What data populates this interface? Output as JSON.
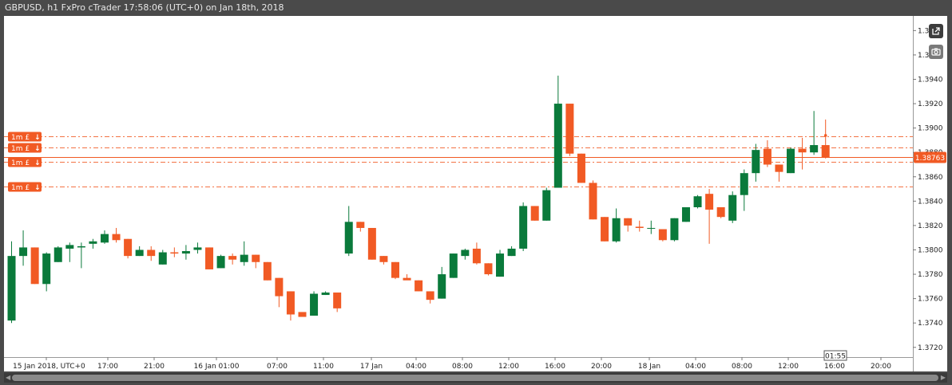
{
  "window": {
    "title": "GBPUSD, h1 FxPro cTrader 17:58:06 (UTC+0) on Jan 18th, 2018"
  },
  "toolbar": {
    "popout_icon": "external-link-icon",
    "screenshot_icon": "camera-icon"
  },
  "colors": {
    "bull": "#0a7a3b",
    "bear": "#f15a24",
    "order_line": "#f15a24",
    "price_line": "#f15a24"
  },
  "chart_data": {
    "type": "candlestick",
    "symbol": "GBPUSD",
    "timeframe": "h1",
    "ylim": [
      1.3712,
      1.3992
    ],
    "y_ticks": [
      "1.3720",
      "1.3740",
      "1.3760",
      "1.3780",
      "1.3800",
      "1.3820",
      "1.3840",
      "1.3860",
      "1.3880",
      "1.3900",
      "1.3920",
      "1.3940",
      "1.3960",
      "1.3980"
    ],
    "x_ticks": [
      "15 Jan 2018, UTC+0",
      "17:00",
      "21:00",
      "16 Jan 01:00",
      "07:00",
      "11:00",
      "17 Jan",
      "04:00",
      "08:00",
      "12:00",
      "16:00",
      "20:00",
      "18 Jan",
      "04:00",
      "08:00",
      "12:00",
      "16:00",
      "20:00"
    ],
    "current_price": "1.38763",
    "current_price_value": 1.38763,
    "countdown": "01:55",
    "orders": [
      {
        "label": "1m £",
        "arrow": "↓",
        "price": 1.3893
      },
      {
        "label": "1m £",
        "arrow": "↓",
        "price": 1.3884
      },
      {
        "label": "1m £",
        "arrow": "↓",
        "price": 1.3872
      },
      {
        "label": "1m £",
        "arrow": "↓",
        "price": 1.3852
      }
    ],
    "candles": [
      {
        "o": 1.3742,
        "h": 1.3807,
        "l": 1.374,
        "c": 1.3795
      },
      {
        "o": 1.3795,
        "h": 1.3816,
        "l": 1.3787,
        "c": 1.3802
      },
      {
        "o": 1.3802,
        "h": 1.3802,
        "l": 1.3772,
        "c": 1.3772
      },
      {
        "o": 1.3772,
        "h": 1.3798,
        "l": 1.3766,
        "c": 1.3797
      },
      {
        "o": 1.379,
        "h": 1.3803,
        "l": 1.379,
        "c": 1.3802
      },
      {
        "o": 1.3801,
        "h": 1.3806,
        "l": 1.379,
        "c": 1.3804
      },
      {
        "o": 1.3802,
        "h": 1.3806,
        "l": 1.3785,
        "c": 1.3803
      },
      {
        "o": 1.3805,
        "h": 1.3809,
        "l": 1.3801,
        "c": 1.3807
      },
      {
        "o": 1.3806,
        "h": 1.3816,
        "l": 1.3805,
        "c": 1.3813
      },
      {
        "o": 1.3813,
        "h": 1.3818,
        "l": 1.3806,
        "c": 1.3808
      },
      {
        "o": 1.3809,
        "h": 1.3809,
        "l": 1.3793,
        "c": 1.3795
      },
      {
        "o": 1.3795,
        "h": 1.3803,
        "l": 1.3795,
        "c": 1.38
      },
      {
        "o": 1.38,
        "h": 1.3803,
        "l": 1.3791,
        "c": 1.3795
      },
      {
        "o": 1.3788,
        "h": 1.38,
        "l": 1.3788,
        "c": 1.3798
      },
      {
        "o": 1.3798,
        "h": 1.3802,
        "l": 1.3794,
        "c": 1.3797
      },
      {
        "o": 1.3797,
        "h": 1.3804,
        "l": 1.3792,
        "c": 1.3799
      },
      {
        "o": 1.38,
        "h": 1.3806,
        "l": 1.3797,
        "c": 1.3802
      },
      {
        "o": 1.3802,
        "h": 1.3802,
        "l": 1.3784,
        "c": 1.3784
      },
      {
        "o": 1.3785,
        "h": 1.3796,
        "l": 1.3785,
        "c": 1.3795
      },
      {
        "o": 1.3795,
        "h": 1.3797,
        "l": 1.3788,
        "c": 1.3792
      },
      {
        "o": 1.379,
        "h": 1.3807,
        "l": 1.3787,
        "c": 1.3796
      },
      {
        "o": 1.3796,
        "h": 1.3796,
        "l": 1.3785,
        "c": 1.379
      },
      {
        "o": 1.379,
        "h": 1.379,
        "l": 1.3775,
        "c": 1.3775
      },
      {
        "o": 1.3777,
        "h": 1.3777,
        "l": 1.3753,
        "c": 1.3762
      },
      {
        "o": 1.3766,
        "h": 1.3766,
        "l": 1.3742,
        "c": 1.3747
      },
      {
        "o": 1.3749,
        "h": 1.3749,
        "l": 1.3745,
        "c": 1.3745
      },
      {
        "o": 1.3746,
        "h": 1.3766,
        "l": 1.3746,
        "c": 1.3764
      },
      {
        "o": 1.3763,
        "h": 1.3766,
        "l": 1.3763,
        "c": 1.3765
      },
      {
        "o": 1.3765,
        "h": 1.3765,
        "l": 1.3749,
        "c": 1.3752
      },
      {
        "o": 1.3797,
        "h": 1.3836,
        "l": 1.3795,
        "c": 1.3823
      },
      {
        "o": 1.3823,
        "h": 1.3823,
        "l": 1.3815,
        "c": 1.3818
      },
      {
        "o": 1.3818,
        "h": 1.3818,
        "l": 1.3792,
        "c": 1.3792
      },
      {
        "o": 1.3795,
        "h": 1.3795,
        "l": 1.3788,
        "c": 1.379
      },
      {
        "o": 1.379,
        "h": 1.379,
        "l": 1.3776,
        "c": 1.3777
      },
      {
        "o": 1.3777,
        "h": 1.378,
        "l": 1.3776,
        "c": 1.3775
      },
      {
        "o": 1.3775,
        "h": 1.3775,
        "l": 1.3766,
        "c": 1.3766
      },
      {
        "o": 1.3766,
        "h": 1.3766,
        "l": 1.3756,
        "c": 1.3759
      },
      {
        "o": 1.376,
        "h": 1.3786,
        "l": 1.376,
        "c": 1.378
      },
      {
        "o": 1.3777,
        "h": 1.3797,
        "l": 1.3777,
        "c": 1.3797
      },
      {
        "o": 1.3795,
        "h": 1.3801,
        "l": 1.3792,
        "c": 1.38
      },
      {
        "o": 1.3801,
        "h": 1.3806,
        "l": 1.3788,
        "c": 1.3789
      },
      {
        "o": 1.3789,
        "h": 1.3789,
        "l": 1.3779,
        "c": 1.378
      },
      {
        "o": 1.3778,
        "h": 1.38,
        "l": 1.3778,
        "c": 1.3797
      },
      {
        "o": 1.3795,
        "h": 1.3803,
        "l": 1.3795,
        "c": 1.3801
      },
      {
        "o": 1.3801,
        "h": 1.3839,
        "l": 1.3799,
        "c": 1.3836
      },
      {
        "o": 1.3836,
        "h": 1.3836,
        "l": 1.3824,
        "c": 1.3824
      },
      {
        "o": 1.3824,
        "h": 1.3851,
        "l": 1.3824,
        "c": 1.3849
      },
      {
        "o": 1.3851,
        "h": 1.3943,
        "l": 1.3851,
        "c": 1.392
      },
      {
        "o": 1.392,
        "h": 1.392,
        "l": 1.3877,
        "c": 1.3879
      },
      {
        "o": 1.3879,
        "h": 1.3879,
        "l": 1.3855,
        "c": 1.3855
      },
      {
        "o": 1.3855,
        "h": 1.3857,
        "l": 1.3825,
        "c": 1.3825
      },
      {
        "o": 1.3827,
        "h": 1.3827,
        "l": 1.3807,
        "c": 1.3807
      },
      {
        "o": 1.3807,
        "h": 1.3834,
        "l": 1.3806,
        "c": 1.3826
      },
      {
        "o": 1.3826,
        "h": 1.3826,
        "l": 1.3815,
        "c": 1.382
      },
      {
        "o": 1.3819,
        "h": 1.3824,
        "l": 1.3815,
        "c": 1.3818
      },
      {
        "o": 1.3818,
        "h": 1.3824,
        "l": 1.3813,
        "c": 1.3818
      },
      {
        "o": 1.3817,
        "h": 1.3817,
        "l": 1.3807,
        "c": 1.3808
      },
      {
        "o": 1.3808,
        "h": 1.3826,
        "l": 1.3807,
        "c": 1.3826
      },
      {
        "o": 1.3823,
        "h": 1.3835,
        "l": 1.3823,
        "c": 1.3835
      },
      {
        "o": 1.3835,
        "h": 1.3845,
        "l": 1.3834,
        "c": 1.3844
      },
      {
        "o": 1.3846,
        "h": 1.385,
        "l": 1.3805,
        "c": 1.3833
      },
      {
        "o": 1.3835,
        "h": 1.3835,
        "l": 1.3826,
        "c": 1.3827
      },
      {
        "o": 1.3824,
        "h": 1.3848,
        "l": 1.3822,
        "c": 1.3845
      },
      {
        "o": 1.3845,
        "h": 1.3866,
        "l": 1.3832,
        "c": 1.3863
      },
      {
        "o": 1.3863,
        "h": 1.3887,
        "l": 1.3856,
        "c": 1.3882
      },
      {
        "o": 1.3883,
        "h": 1.389,
        "l": 1.3868,
        "c": 1.387
      },
      {
        "o": 1.387,
        "h": 1.387,
        "l": 1.3856,
        "c": 1.3864
      },
      {
        "o": 1.3863,
        "h": 1.3884,
        "l": 1.3863,
        "c": 1.3883
      },
      {
        "o": 1.3883,
        "h": 1.3892,
        "l": 1.3866,
        "c": 1.388
      },
      {
        "o": 1.388,
        "h": 1.3914,
        "l": 1.3878,
        "c": 1.3886
      },
      {
        "o": 1.3886,
        "h": 1.3907,
        "l": 1.3875,
        "c": 1.3876
      }
    ]
  }
}
